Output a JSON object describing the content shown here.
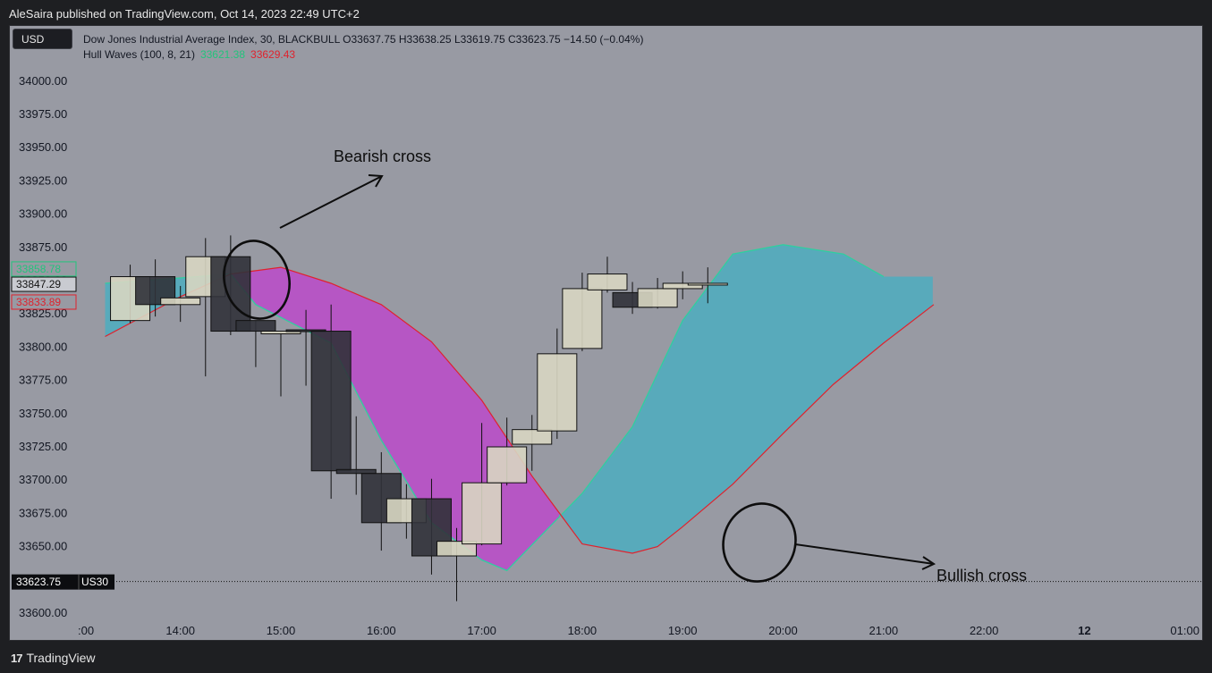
{
  "header": {
    "published": "AleSaira published on TradingView.com, Oct 14, 2023 22:49 UTC+2"
  },
  "toolbar": {
    "currency": "USD"
  },
  "legend": {
    "symbol_line": "Dow Jones Industrial Average Index, 30, BLACKBULL  O33637.75  H33638.25  L33619.75  C33623.75  −14.50 (−0.04%)",
    "indicator": "Hull Waves (100, 8, 21)",
    "indicator_green": "33621.38",
    "indicator_red": "33629.43"
  },
  "price_labels": {
    "green": "33858.78",
    "current": "33847.29",
    "red": "33833.89",
    "last_price": "33623.75",
    "symbol": "US30"
  },
  "annotations": {
    "bearish": "Bearish cross",
    "bullish": "Bullish cross"
  },
  "footer": {
    "brand": "TradingView",
    "logo": "17"
  },
  "colors": {
    "background": "#989aa3",
    "bull_candle": "#d8d6c2",
    "bear_candle": "#31323a",
    "fast_line": "#2fcfa0",
    "slow_line": "#e0222d",
    "bull_fill": "#58aabb",
    "bear_fill": "#b656c4",
    "text": "#131722"
  },
  "chart_data": {
    "type": "candlestick",
    "title": "Dow Jones Industrial Average Index, 30, BLACKBULL",
    "xlabel": "",
    "ylabel": "",
    "ylim": [
      33585,
      34012
    ],
    "x_ticks": [
      {
        "t": 13.5,
        "label": ":00"
      },
      {
        "t": 14,
        "label": "14:00"
      },
      {
        "t": 15,
        "label": "15:00"
      },
      {
        "t": 16,
        "label": "16:00"
      },
      {
        "t": 17,
        "label": "17:00"
      },
      {
        "t": 18,
        "label": "18:00"
      },
      {
        "t": 19,
        "label": "19:00"
      },
      {
        "t": 20,
        "label": "20:00"
      },
      {
        "t": 21,
        "label": "21:00"
      },
      {
        "t": 22,
        "label": "22:00"
      },
      {
        "t": 23,
        "label": "12",
        "bold": true
      },
      {
        "t": 24,
        "label": "01:00"
      }
    ],
    "y_ticks": [
      33600,
      33625,
      33650,
      33675,
      33700,
      33725,
      33750,
      33775,
      33800,
      33825,
      33850,
      33875,
      33900,
      33925,
      33950,
      33975,
      34000
    ],
    "candles": [
      {
        "t": 13.5,
        "o": 33820,
        "h": 33862,
        "l": 33818,
        "c": 33853
      },
      {
        "t": 13.75,
        "o": 33853,
        "h": 33866,
        "l": 33823,
        "c": 33832
      },
      {
        "t": 14,
        "o": 33832,
        "h": 33846,
        "l": 33819,
        "c": 33837
      },
      {
        "t": 14.25,
        "o": 33838,
        "h": 33882,
        "l": 33778,
        "c": 33868
      },
      {
        "t": 14.5,
        "o": 33868,
        "h": 33884,
        "l": 33809,
        "c": 33812
      },
      {
        "t": 14.75,
        "o": 33820,
        "h": 33820,
        "l": 33785,
        "c": 33812
      },
      {
        "t": 15,
        "o": 33810,
        "h": 33812,
        "l": 33763,
        "c": 33812
      },
      {
        "t": 15.25,
        "o": 33813,
        "h": 33828,
        "l": 33771,
        "c": 33812
      },
      {
        "t": 15.5,
        "o": 33812,
        "h": 33832,
        "l": 33686,
        "c": 33707
      },
      {
        "t": 15.75,
        "o": 33708,
        "h": 33748,
        "l": 33689,
        "c": 33705
      },
      {
        "t": 16,
        "o": 33705,
        "h": 33721,
        "l": 33647,
        "c": 33668
      },
      {
        "t": 16.25,
        "o": 33668,
        "h": 33697,
        "l": 33656,
        "c": 33686
      },
      {
        "t": 16.5,
        "o": 33686,
        "h": 33701,
        "l": 33629,
        "c": 33643
      },
      {
        "t": 16.75,
        "o": 33643,
        "h": 33664,
        "l": 33609,
        "c": 33654
      },
      {
        "t": 17,
        "o": 33652,
        "h": 33743,
        "l": 33651,
        "c": 33698
      },
      {
        "t": 17.25,
        "o": 33698,
        "h": 33747,
        "l": 33696,
        "c": 33725
      },
      {
        "t": 17.5,
        "o": 33727,
        "h": 33749,
        "l": 33707,
        "c": 33738
      },
      {
        "t": 17.75,
        "o": 33737,
        "h": 33814,
        "l": 33731,
        "c": 33795
      },
      {
        "t": 18,
        "o": 33799,
        "h": 33856,
        "l": 33797,
        "c": 33844
      },
      {
        "t": 18.25,
        "o": 33843,
        "h": 33868,
        "l": 33841,
        "c": 33855
      },
      {
        "t": 18.5,
        "o": 33841,
        "h": 33849,
        "l": 33825,
        "c": 33830
      },
      {
        "t": 18.75,
        "o": 33830,
        "h": 33852,
        "l": 33829,
        "c": 33844
      },
      {
        "t": 19,
        "o": 33844,
        "h": 33857,
        "l": 33836,
        "c": 33848
      },
      {
        "t": 19.25,
        "o": 33848,
        "h": 33860,
        "l": 33833,
        "c": 33848
      }
    ],
    "hull_fast": [
      [
        13.25,
        33848
      ],
      [
        14,
        33852
      ],
      [
        14.5,
        33855
      ],
      [
        14.75,
        33832
      ],
      [
        15.5,
        33803
      ],
      [
        16,
        33730
      ],
      [
        16.5,
        33668
      ],
      [
        17,
        33640
      ],
      [
        17.25,
        33632
      ],
      [
        18,
        33690
      ],
      [
        18.5,
        33740
      ],
      [
        19,
        33820
      ],
      [
        19.5,
        33870
      ],
      [
        20,
        33877
      ],
      [
        20.6,
        33870
      ],
      [
        21,
        33853
      ]
    ],
    "hull_slow": [
      [
        13.25,
        33808
      ],
      [
        14,
        33838
      ],
      [
        14.5,
        33855
      ],
      [
        15,
        33860
      ],
      [
        15.5,
        33848
      ],
      [
        16,
        33832
      ],
      [
        16.5,
        33804
      ],
      [
        17,
        33760
      ],
      [
        17.5,
        33703
      ],
      [
        18,
        33652
      ],
      [
        18.5,
        33645
      ],
      [
        18.75,
        33650
      ],
      [
        19,
        33665
      ],
      [
        19.5,
        33697
      ],
      [
        20,
        33735
      ],
      [
        20.5,
        33772
      ],
      [
        21,
        33803
      ],
      [
        21.5,
        33832
      ]
    ]
  }
}
